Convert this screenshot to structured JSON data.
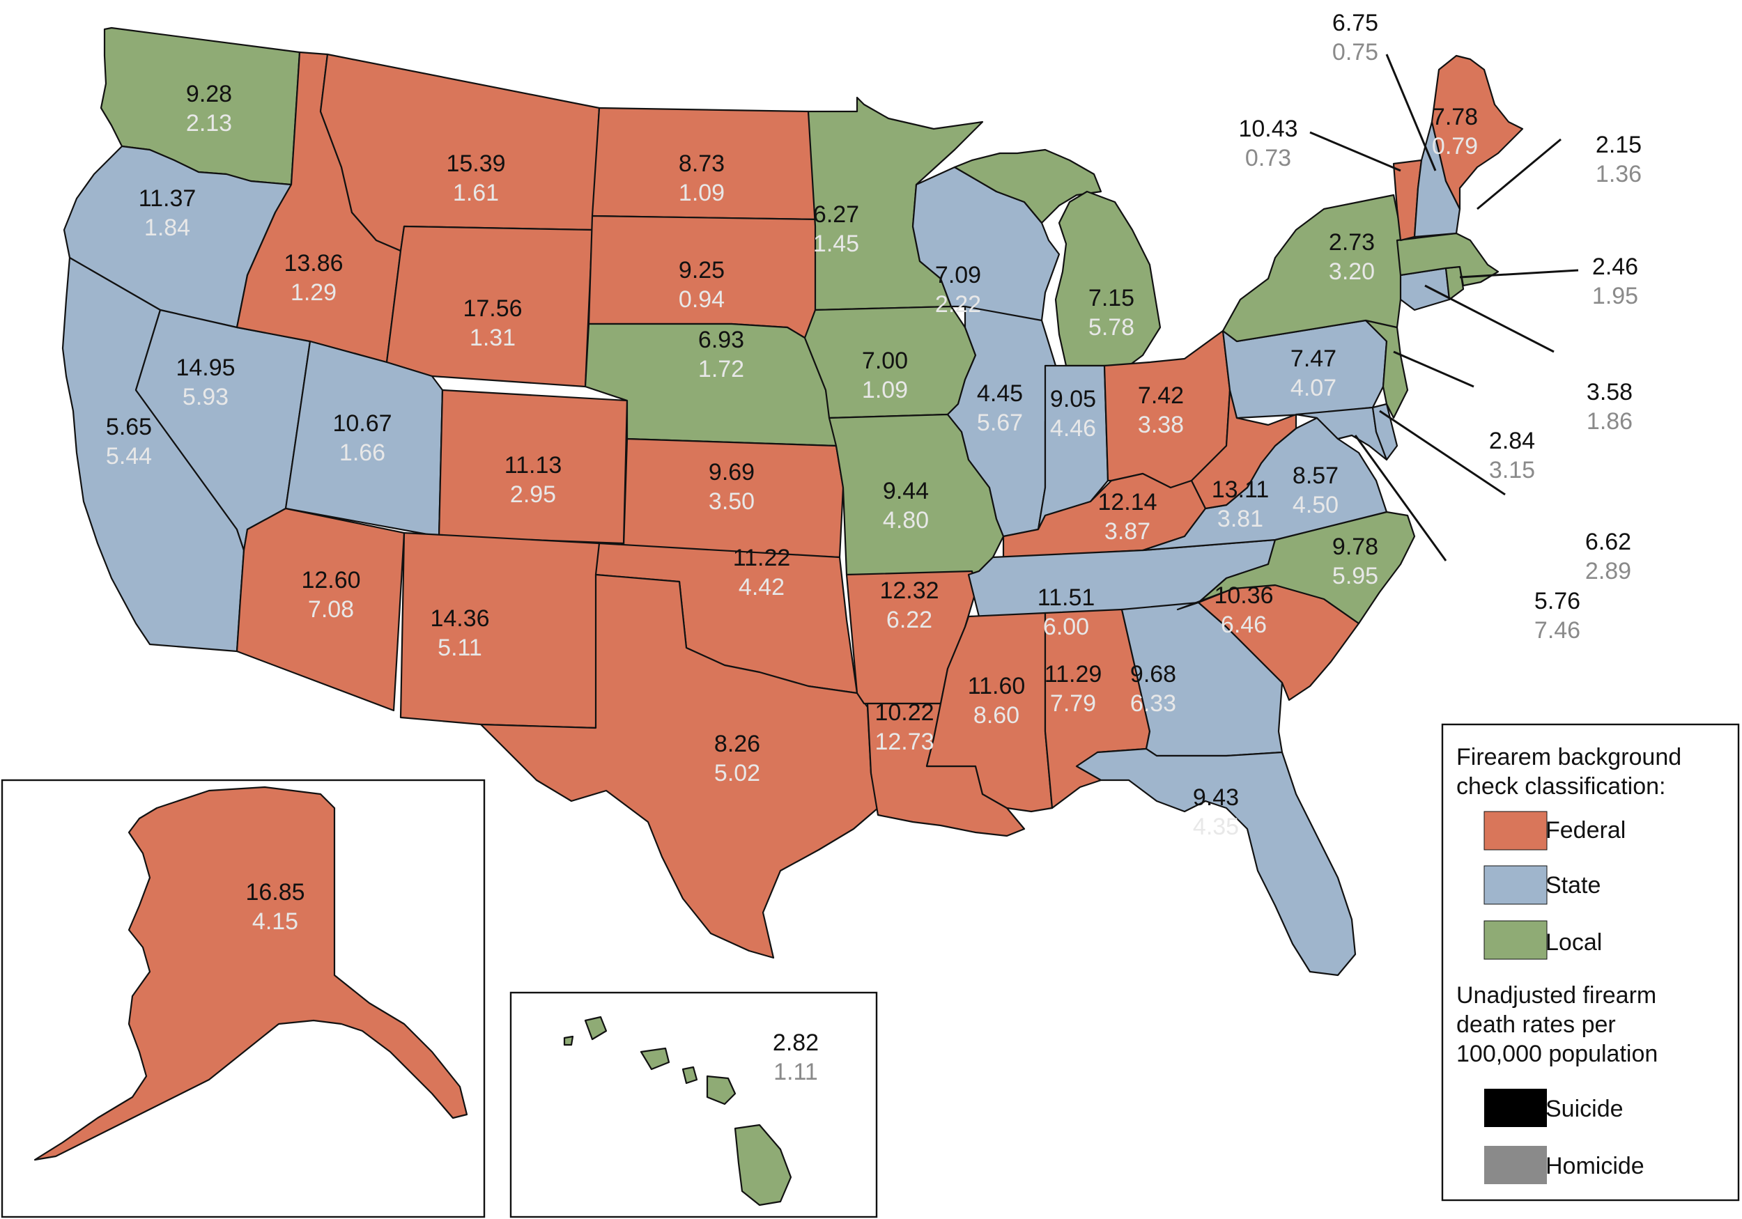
{
  "colors": {
    "federal": "#d9765a",
    "state": "#9fb5cc",
    "local": "#8fab75",
    "suicide": "#000000",
    "homicide": "#8a8a8a",
    "label_light": "#e8e8e8",
    "label_dark": "#111111",
    "label_gray": "#8a8a8a"
  },
  "legend": {
    "title_line1": "Firearem background",
    "title_line2": "check classification:",
    "federal_label": "Federal",
    "state_label": "State",
    "local_label": "Local",
    "rates_line1": "Unadjusted firearm",
    "rates_line2": "death rates per",
    "rates_line3": "100,000 population",
    "suicide_label": "Suicide",
    "homicide_label": "Homicide"
  },
  "states": [
    {
      "id": "WA",
      "class": "local",
      "suicide": "9.28",
      "homicide": "2.13"
    },
    {
      "id": "OR",
      "class": "state",
      "suicide": "11.37",
      "homicide": "1.84"
    },
    {
      "id": "CA",
      "class": "state",
      "suicide": "5.65",
      "homicide": "5.44"
    },
    {
      "id": "NV",
      "class": "state",
      "suicide": "14.95",
      "homicide": "5.93"
    },
    {
      "id": "ID",
      "class": "federal",
      "suicide": "13.86",
      "homicide": "1.29"
    },
    {
      "id": "MT",
      "class": "federal",
      "suicide": "15.39",
      "homicide": "1.61"
    },
    {
      "id": "WY",
      "class": "federal",
      "suicide": "17.56",
      "homicide": "1.31"
    },
    {
      "id": "UT",
      "class": "state",
      "suicide": "10.67",
      "homicide": "1.66"
    },
    {
      "id": "AZ",
      "class": "federal",
      "suicide": "12.60",
      "homicide": "7.08"
    },
    {
      "id": "CO",
      "class": "federal",
      "suicide": "11.13",
      "homicide": "2.95"
    },
    {
      "id": "NM",
      "class": "federal",
      "suicide": "14.36",
      "homicide": "5.11"
    },
    {
      "id": "ND",
      "class": "federal",
      "suicide": "8.73",
      "homicide": "1.09"
    },
    {
      "id": "SD",
      "class": "federal",
      "suicide": "9.25",
      "homicide": "0.94"
    },
    {
      "id": "NE",
      "class": "local",
      "suicide": "6.93",
      "homicide": "1.72"
    },
    {
      "id": "KS",
      "class": "federal",
      "suicide": "9.69",
      "homicide": "3.50"
    },
    {
      "id": "OK",
      "class": "federal",
      "suicide": "11.22",
      "homicide": "4.42"
    },
    {
      "id": "TX",
      "class": "federal",
      "suicide": "8.26",
      "homicide": "5.02"
    },
    {
      "id": "MN",
      "class": "local",
      "suicide": "6.27",
      "homicide": "1.45"
    },
    {
      "id": "IA",
      "class": "local",
      "suicide": "7.00",
      "homicide": "1.09"
    },
    {
      "id": "MO",
      "class": "local",
      "suicide": "9.44",
      "homicide": "4.80"
    },
    {
      "id": "AR",
      "class": "federal",
      "suicide": "12.32",
      "homicide": "6.22"
    },
    {
      "id": "LA",
      "class": "federal",
      "suicide": "10.22",
      "homicide": "12.73"
    },
    {
      "id": "WI",
      "class": "state",
      "suicide": "7.09",
      "homicide": "2.22"
    },
    {
      "id": "IL",
      "class": "state",
      "suicide": "4.45",
      "homicide": "5.67"
    },
    {
      "id": "MI",
      "class": "local",
      "suicide": "7.15",
      "homicide": "5.78"
    },
    {
      "id": "IN",
      "class": "state",
      "suicide": "9.05",
      "homicide": "4.46"
    },
    {
      "id": "OH",
      "class": "federal",
      "suicide": "7.42",
      "homicide": "3.38"
    },
    {
      "id": "KY",
      "class": "federal",
      "suicide": "12.14",
      "homicide": "3.87"
    },
    {
      "id": "TN",
      "class": "state",
      "suicide": "11.51",
      "homicide": "6.00"
    },
    {
      "id": "MS",
      "class": "federal",
      "suicide": "11.60",
      "homicide": "8.60"
    },
    {
      "id": "AL",
      "class": "federal",
      "suicide": "11.29",
      "homicide": "7.79"
    },
    {
      "id": "GA",
      "class": "state",
      "suicide": "9.68",
      "homicide": "6.33"
    },
    {
      "id": "FL",
      "class": "state",
      "suicide": "9.43",
      "homicide": "4.35"
    },
    {
      "id": "SC",
      "class": "federal",
      "suicide": "10.36",
      "homicide": "6.46"
    },
    {
      "id": "NC",
      "class": "local",
      "suicide": "9.78",
      "homicide": "5.95"
    },
    {
      "id": "VA",
      "class": "state",
      "suicide": "8.57",
      "homicide": "4.50"
    },
    {
      "id": "WV",
      "class": "federal",
      "suicide": "13.11",
      "homicide": "3.81"
    },
    {
      "id": "PA",
      "class": "state",
      "suicide": "7.47",
      "homicide": "4.07"
    },
    {
      "id": "NY",
      "class": "local",
      "suicide": "2.73",
      "homicide": "3.20"
    },
    {
      "id": "NJ",
      "class": "local",
      "suicide": "2.84",
      "homicide": "3.15"
    },
    {
      "id": "DE",
      "class": "state",
      "suicide": "6.62",
      "homicide": "2.89"
    },
    {
      "id": "MD",
      "class": "state",
      "suicide": "5.76",
      "homicide": "7.46"
    },
    {
      "id": "CT",
      "class": "state",
      "suicide": "3.58",
      "homicide": "1.86"
    },
    {
      "id": "RI",
      "class": "local",
      "suicide": "2.46",
      "homicide": "1.95"
    },
    {
      "id": "MA",
      "class": "local",
      "suicide": "2.15",
      "homicide": "1.36"
    },
    {
      "id": "VT",
      "class": "federal",
      "suicide": "10.43",
      "homicide": "0.73"
    },
    {
      "id": "NH",
      "class": "state",
      "suicide": "6.75",
      "homicide": "0.75"
    },
    {
      "id": "ME",
      "class": "federal",
      "suicide": "7.78",
      "homicide": "0.79"
    },
    {
      "id": "AK",
      "class": "federal",
      "suicide": "16.85",
      "homicide": "4.15"
    },
    {
      "id": "HI",
      "class": "local",
      "suicide": "2.82",
      "homicide": "1.11"
    }
  ]
}
